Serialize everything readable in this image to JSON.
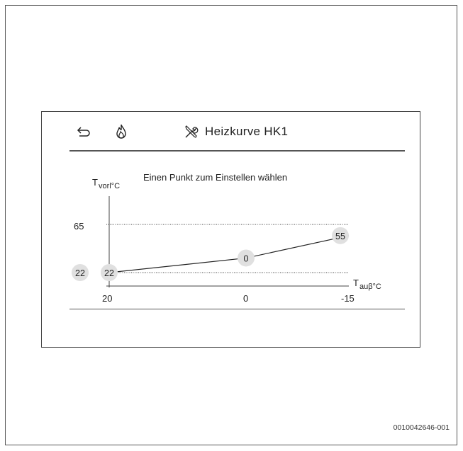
{
  "header": {
    "back_icon": "back-arrow-icon",
    "flame_icon": "flame-icon",
    "tools_icon": "tools-icon",
    "title": "Heizkurve HK1"
  },
  "chart": {
    "y_axis_label": "T",
    "y_axis_sub": "vorl°C",
    "x_axis_label": "T",
    "x_axis_sub": "auβ°C",
    "hint": "Einen Punkt zum Einstellen wählen",
    "y_tick_top": "65",
    "y_value_left": "22",
    "x_ticks": [
      "20",
      "0",
      "-15"
    ],
    "points": [
      {
        "label": "22",
        "x": 20,
        "y": 22
      },
      {
        "label": "0",
        "x": 0,
        "y": 35
      },
      {
        "label": "55",
        "x": -15,
        "y": 55
      }
    ]
  },
  "chart_data": {
    "type": "line",
    "title": "Heizkurve HK1",
    "xlabel": "T auβ°C",
    "ylabel": "T vorl°C",
    "x": [
      20,
      0,
      -15
    ],
    "series": [
      {
        "values": [
          22,
          35,
          55
        ]
      }
    ],
    "ylim": [
      22,
      65
    ],
    "grid": "dotted reference lines at 22 and 65"
  },
  "footer": {
    "doc_code": "0010042646-001"
  }
}
